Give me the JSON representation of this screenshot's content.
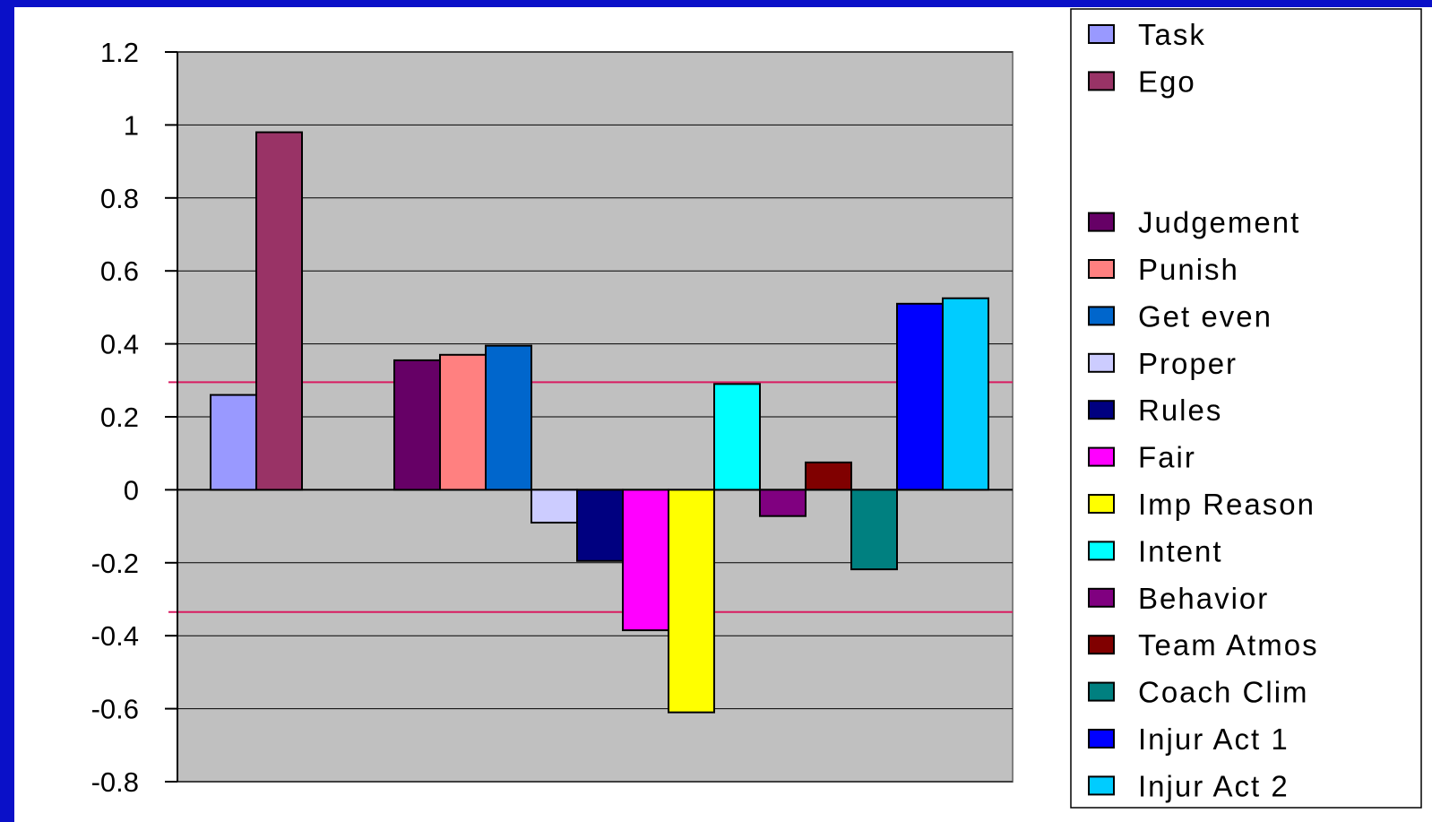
{
  "chart_data": {
    "type": "bar",
    "title": "",
    "xlabel": "",
    "ylabel": "",
    "ylim": [
      -0.8,
      1.2
    ],
    "yticks": [
      "1.2",
      "1",
      "0.8",
      "0.6",
      "0.4",
      "0.2",
      "0",
      "-0.2",
      "-0.4",
      "-0.6",
      "-0.8"
    ],
    "grid": true,
    "legend_position": "right",
    "plot_background": "#c0c0c0",
    "reference_lines": [
      {
        "value": 0.295,
        "color": "#d81b60"
      },
      {
        "value": -0.335,
        "color": "#d81b60"
      }
    ],
    "groups": [
      [
        {
          "name": "Task",
          "value": 0.26,
          "color": "#9999ff"
        },
        {
          "name": "Ego",
          "value": 0.98,
          "color": "#993366"
        }
      ],
      [
        {
          "name": "Judgement",
          "value": 0.355,
          "color": "#660066"
        },
        {
          "name": "Punish",
          "value": 0.37,
          "color": "#ff8080"
        },
        {
          "name": "Get even",
          "value": 0.395,
          "color": "#0066cc"
        },
        {
          "name": "Proper",
          "value": -0.09,
          "color": "#ccccff"
        },
        {
          "name": "Rules",
          "value": -0.195,
          "color": "#000080"
        },
        {
          "name": "Fair",
          "value": -0.385,
          "color": "#ff00ff"
        },
        {
          "name": "Imp Reason",
          "value": -0.61,
          "color": "#ffff00"
        },
        {
          "name": "Intent",
          "value": 0.29,
          "color": "#00ffff"
        },
        {
          "name": "Behavior",
          "value": -0.072,
          "color": "#800080"
        },
        {
          "name": "Team Atmos",
          "value": 0.075,
          "color": "#800000"
        },
        {
          "name": "Coach Clim",
          "value": -0.218,
          "color": "#008080"
        },
        {
          "name": "Injur Act 1",
          "value": 0.51,
          "color": "#0000ff"
        },
        {
          "name": "Injur Act 2",
          "value": 0.525,
          "color": "#00ccff"
        }
      ]
    ]
  }
}
